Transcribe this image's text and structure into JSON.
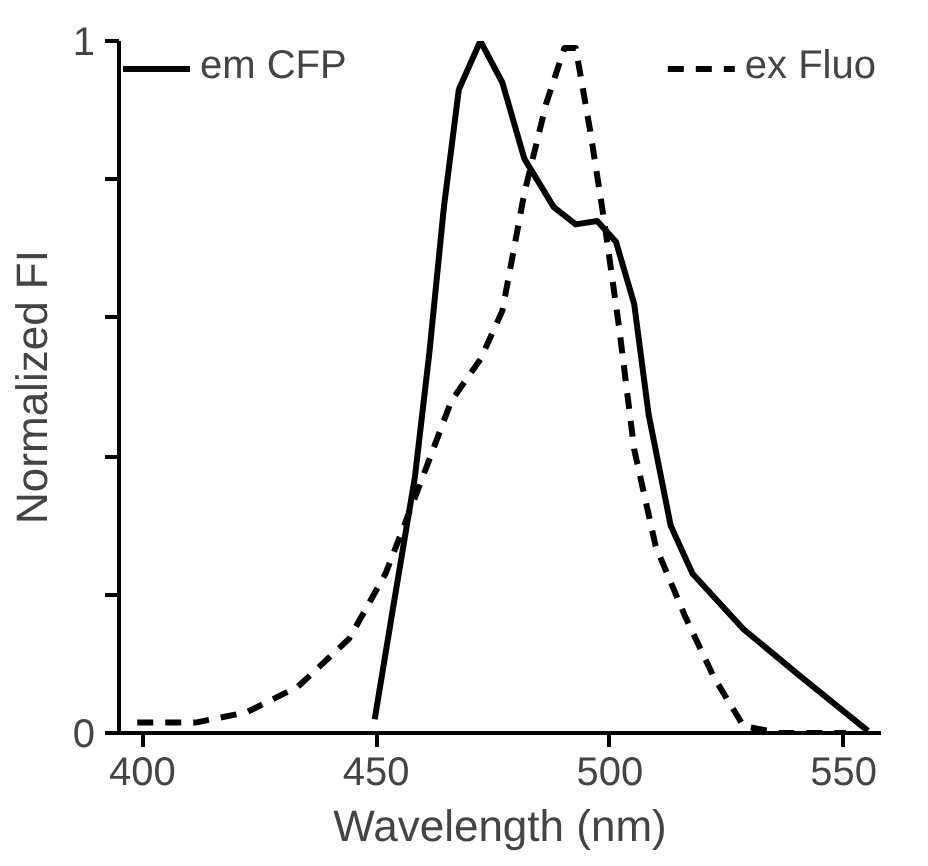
{
  "chart_data": {
    "type": "line",
    "xlabel": "Wavelength (nm)",
    "ylabel": "Normalized FI",
    "xlim": [
      395,
      558
    ],
    "ylim": [
      0,
      1
    ],
    "xticks": [
      400,
      450,
      500,
      550
    ],
    "yticks": [
      0,
      {
        "value": 0.2,
        "label": null
      },
      {
        "value": 0.4,
        "label": null
      },
      {
        "value": 0.6,
        "label": null
      },
      {
        "value": 0.8,
        "label": null
      },
      1
    ],
    "legend": "top",
    "grid": false,
    "series": [
      {
        "name": "em CFP",
        "color": "#000000",
        "line_style": "solid",
        "x": [
          449.7,
          453.6,
          458.3,
          461.4,
          464.5,
          467.7,
          472.3,
          477,
          481.7,
          488,
          492.7,
          497.3,
          501.3,
          505.2,
          508.3,
          513,
          517.7,
          528.6,
          541.1,
          555.2
        ],
        "values": [
          0.02,
          0.18,
          0.37,
          0.55,
          0.76,
          0.93,
          1.0,
          0.94,
          0.83,
          0.76,
          0.735,
          0.74,
          0.71,
          0.62,
          0.46,
          0.3,
          0.23,
          0.15,
          0.08,
          0.003
        ]
      },
      {
        "name": "ex Fluo",
        "color": "#000000",
        "line_style": "dashed",
        "x": [
          398.9,
          411.4,
          422.3,
          433.3,
          444.2,
          452,
          458.3,
          466.1,
          472.3,
          477,
          481.7,
          486.4,
          490.3,
          492.7,
          495.8,
          498.9,
          502,
          505.2,
          509.8,
          516,
          522.3,
          528.6,
          536.4,
          550.5
        ],
        "values": [
          0.015,
          0.015,
          0.03,
          0.067,
          0.136,
          0.23,
          0.34,
          0.48,
          0.54,
          0.61,
          0.78,
          0.91,
          0.99,
          0.99,
          0.87,
          0.735,
          0.585,
          0.41,
          0.27,
          0.17,
          0.08,
          0.01,
          0,
          0
        ]
      }
    ]
  }
}
